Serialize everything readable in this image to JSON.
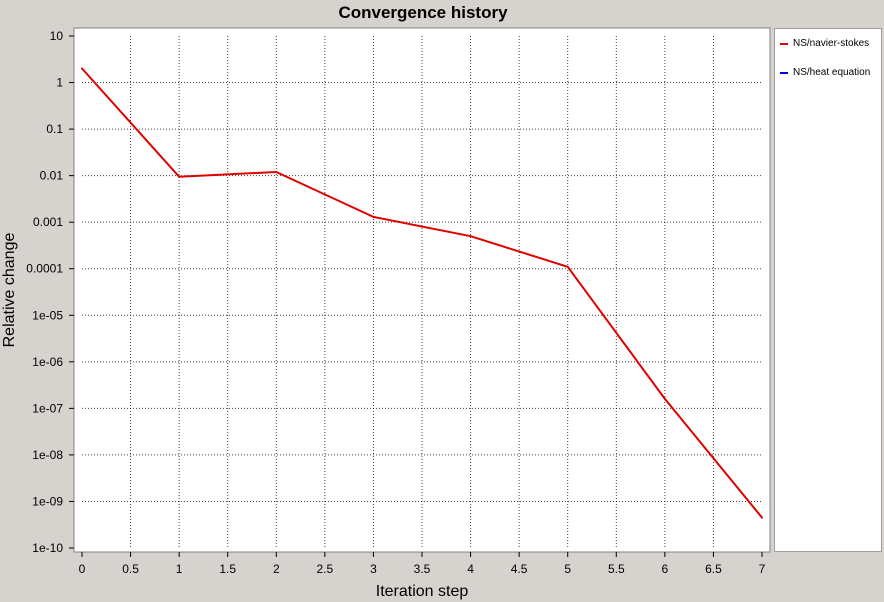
{
  "chart_data": {
    "type": "line",
    "title": "Convergence history",
    "xlabel": "Iteration step",
    "ylabel": "Relative change",
    "xlim": [
      0,
      7
    ],
    "ylim": [
      1e-10,
      10
    ],
    "y_scale": "log",
    "grid": true,
    "legend_position": "right",
    "x_ticks": [
      "0",
      "0.5",
      "1",
      "1.5",
      "2",
      "2.5",
      "3",
      "3.5",
      "4",
      "4.5",
      "5",
      "5.5",
      "6",
      "6.5",
      "7"
    ],
    "y_ticks": [
      "10",
      "1",
      "0.1",
      "0.01",
      "0.001",
      "0.0001",
      "1e-05",
      "1e-06",
      "1e-07",
      "1e-08",
      "1e-09",
      "1e-10"
    ],
    "series": [
      {
        "name": "NS/navier-stokes",
        "color": "#e00000",
        "x": [
          0,
          1,
          2,
          3,
          4,
          5,
          6,
          7
        ],
        "y": [
          2,
          0.0095,
          0.012,
          0.0013,
          0.0005,
          0.00011,
          1.6e-07,
          4.5e-10
        ]
      },
      {
        "name": "NS/heat equation",
        "color": "#0000e0",
        "x": [],
        "y": []
      }
    ]
  }
}
